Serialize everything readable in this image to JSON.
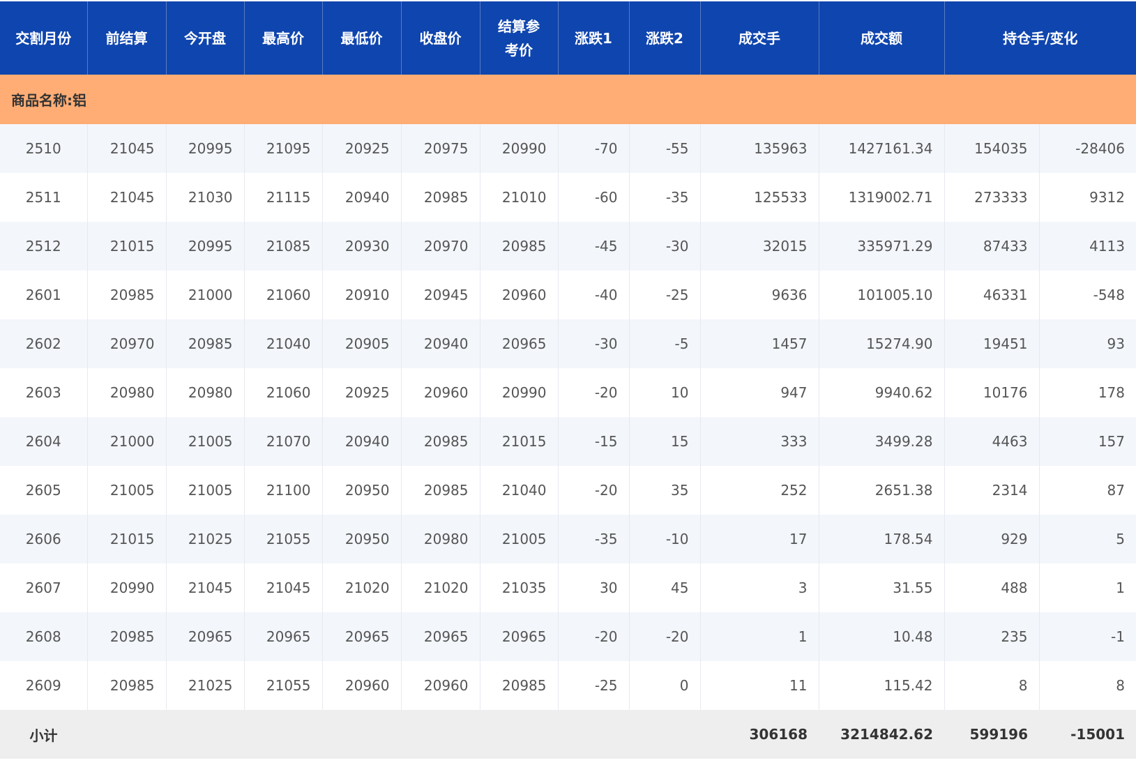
{
  "headers": [
    "交割月份",
    "前结算",
    "今开盘",
    "最高价",
    "最低价",
    "收盘价",
    "结算参考价",
    "涨跌1",
    "涨跌2",
    "成交手",
    "成交额",
    "持仓手/变化"
  ],
  "group_label": "商品名称:铝",
  "rows": [
    [
      "2510",
      "21045",
      "20995",
      "21095",
      "20925",
      "20975",
      "20990",
      "-70",
      "-55",
      "135963",
      "1427161.34",
      "154035",
      "-28406"
    ],
    [
      "2511",
      "21045",
      "21030",
      "21115",
      "20940",
      "20985",
      "21010",
      "-60",
      "-35",
      "125533",
      "1319002.71",
      "273333",
      "9312"
    ],
    [
      "2512",
      "21015",
      "20995",
      "21085",
      "20930",
      "20970",
      "20985",
      "-45",
      "-30",
      "32015",
      "335971.29",
      "87433",
      "4113"
    ],
    [
      "2601",
      "20985",
      "21000",
      "21060",
      "20910",
      "20945",
      "20960",
      "-40",
      "-25",
      "9636",
      "101005.10",
      "46331",
      "-548"
    ],
    [
      "2602",
      "20970",
      "20985",
      "21040",
      "20905",
      "20940",
      "20965",
      "-30",
      "-5",
      "1457",
      "15274.90",
      "19451",
      "93"
    ],
    [
      "2603",
      "20980",
      "20980",
      "21060",
      "20925",
      "20960",
      "20990",
      "-20",
      "10",
      "947",
      "9940.62",
      "10176",
      "178"
    ],
    [
      "2604",
      "21000",
      "21005",
      "21070",
      "20940",
      "20985",
      "21015",
      "-15",
      "15",
      "333",
      "3499.28",
      "4463",
      "157"
    ],
    [
      "2605",
      "21005",
      "21005",
      "21100",
      "20950",
      "20985",
      "21040",
      "-20",
      "35",
      "252",
      "2651.38",
      "2314",
      "87"
    ],
    [
      "2606",
      "21015",
      "21025",
      "21055",
      "20950",
      "20980",
      "21005",
      "-35",
      "-10",
      "17",
      "178.54",
      "929",
      "5"
    ],
    [
      "2607",
      "20990",
      "21045",
      "21045",
      "21020",
      "21020",
      "21035",
      "30",
      "45",
      "3",
      "31.55",
      "488",
      "1"
    ],
    [
      "2608",
      "20985",
      "20965",
      "20965",
      "20965",
      "20965",
      "20965",
      "-20",
      "-20",
      "1",
      "10.48",
      "235",
      "-1"
    ],
    [
      "2609",
      "20985",
      "21025",
      "21055",
      "20960",
      "20960",
      "20985",
      "-25",
      "0",
      "11",
      "115.42",
      "8",
      "8"
    ]
  ],
  "subtotal": {
    "label": "小计",
    "volume": "306168",
    "turnover": "3214842.62",
    "open_interest": "599196",
    "oi_change": "-15001"
  }
}
